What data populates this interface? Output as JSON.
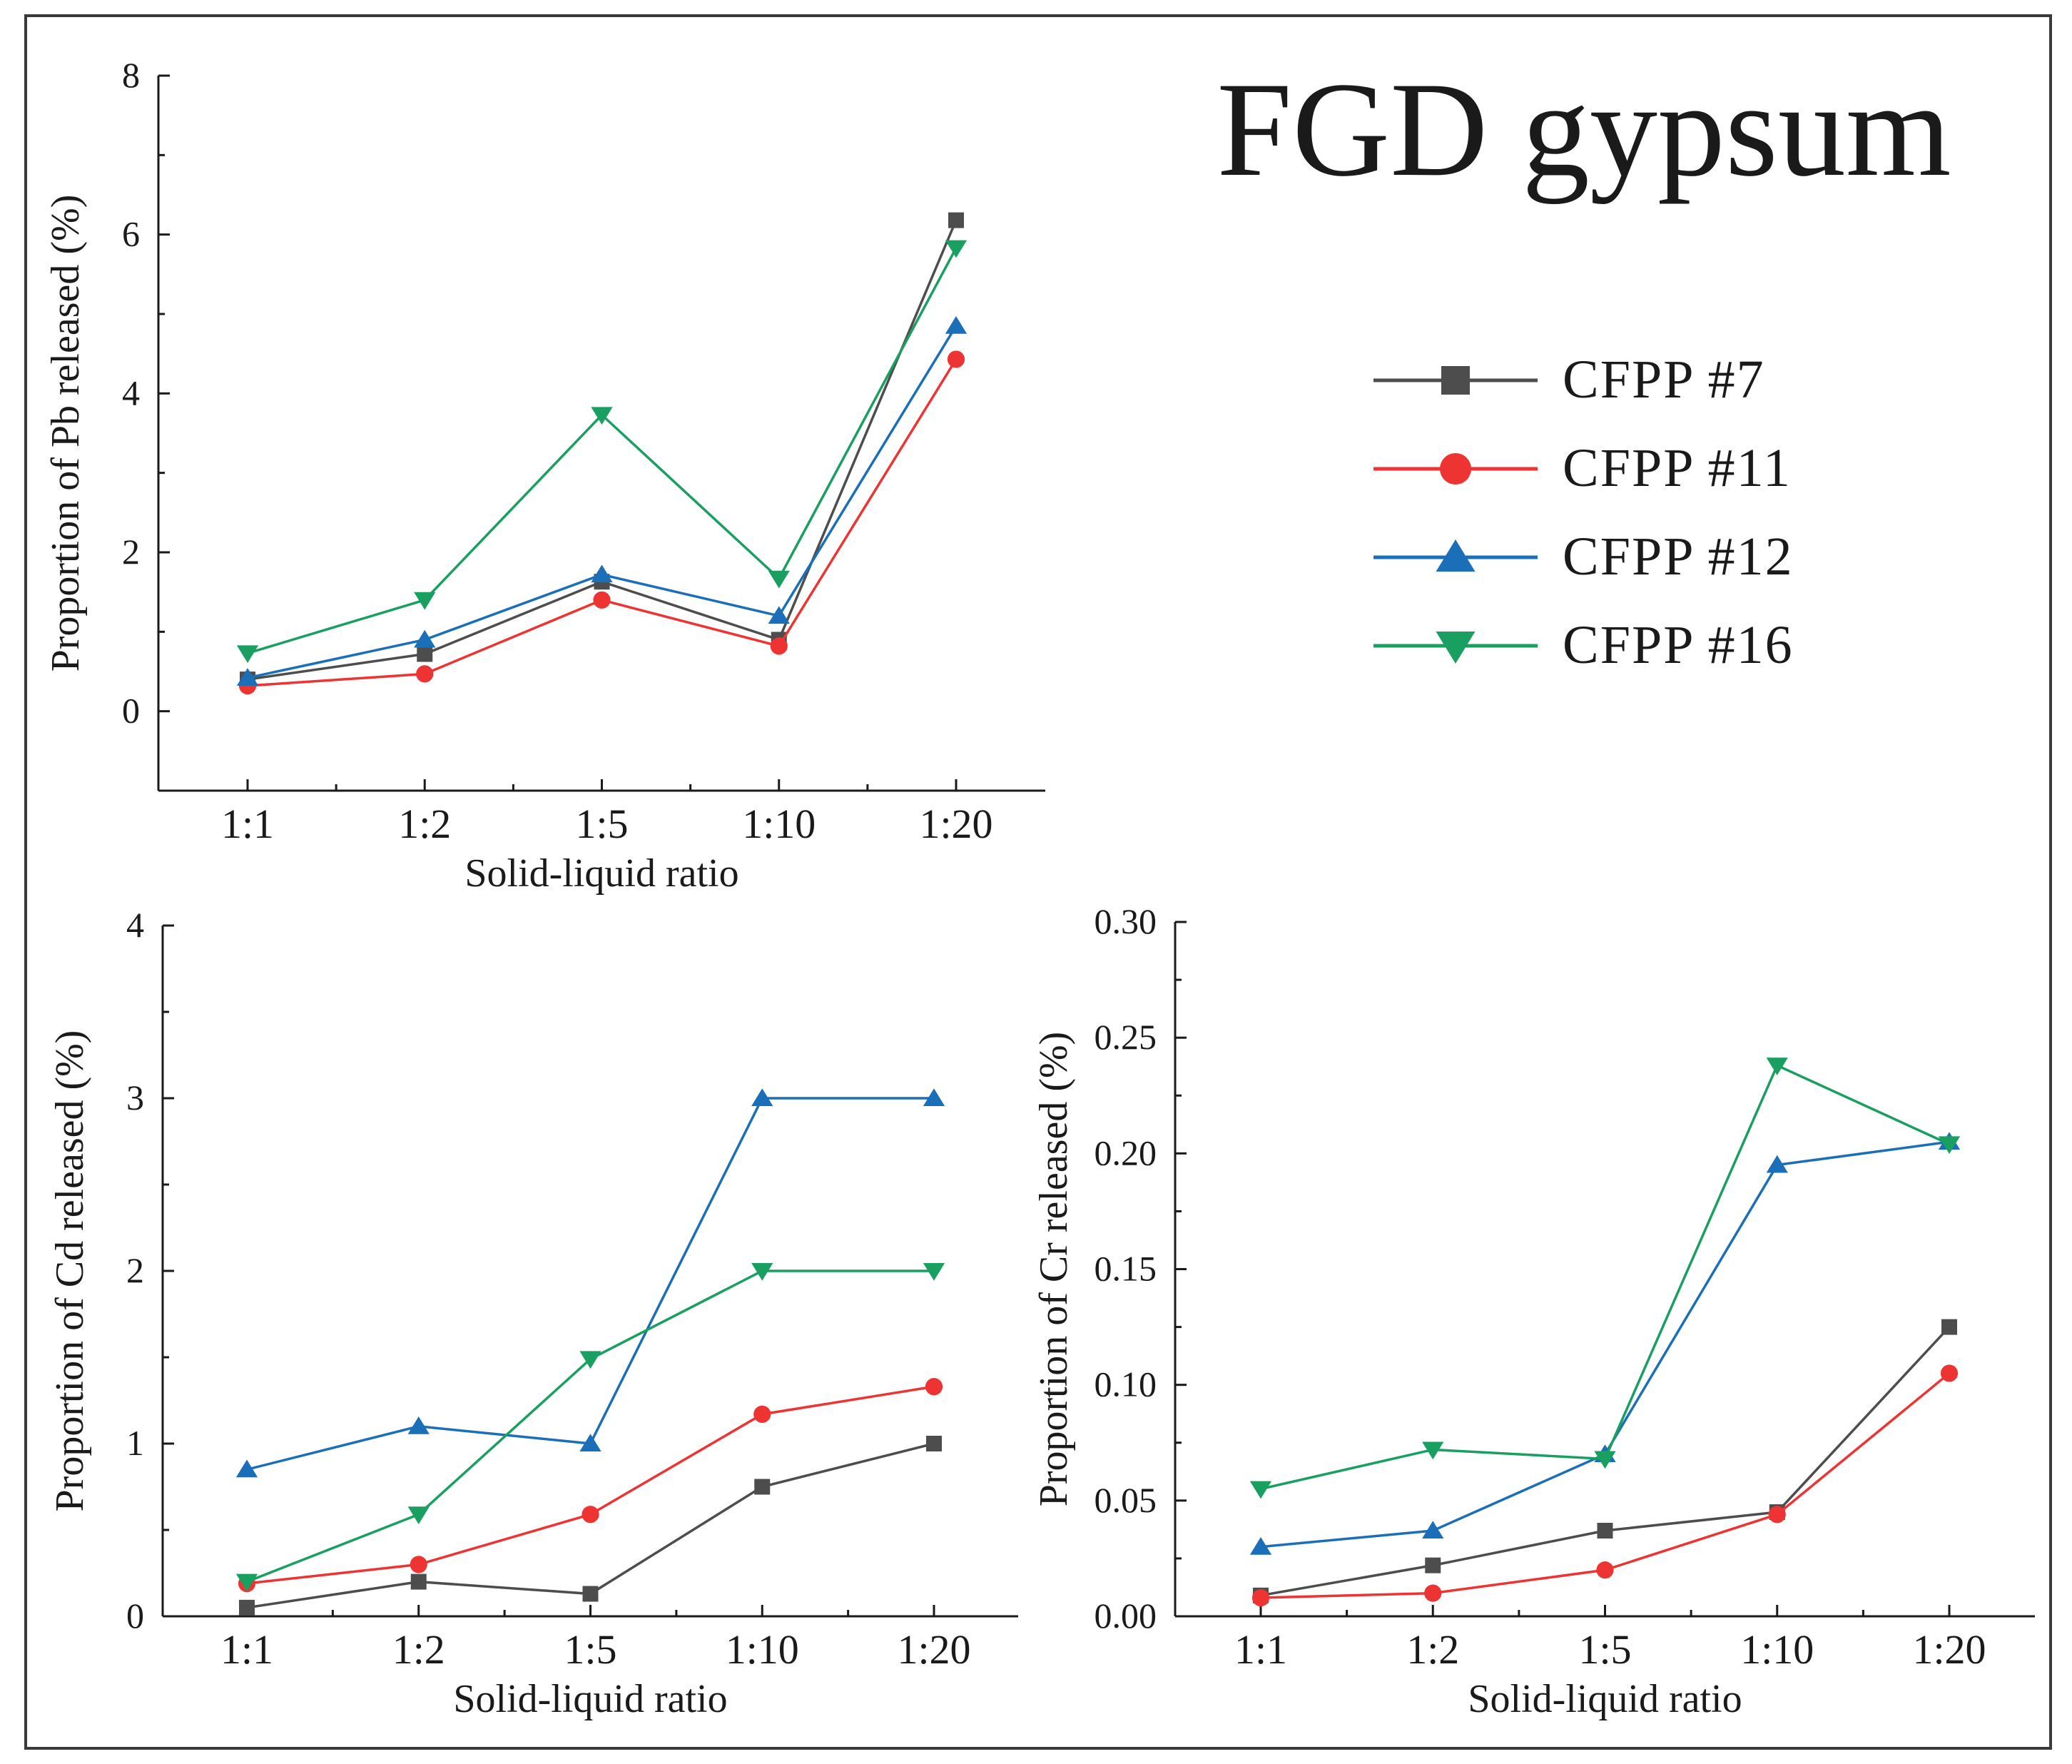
{
  "figure_title": "FGD gypsum",
  "colors": {
    "CFPP #7": "#4d4d4d",
    "CFPP #11": "#ee3333",
    "CFPP #12": "#1a6fb8",
    "CFPP #16": "#19a060"
  },
  "legend": [
    {
      "name": "CFPP #7",
      "marker": "square"
    },
    {
      "name": "CFPP #11",
      "marker": "circle"
    },
    {
      "name": "CFPP #12",
      "marker": "triangle-up"
    },
    {
      "name": "CFPP #16",
      "marker": "triangle-down"
    }
  ],
  "chart_data": [
    {
      "type": "line",
      "id": "pb",
      "title": "",
      "xlabel": "Solid-liquid ratio",
      "ylabel": "Proportion of Pb released (%)",
      "categories": [
        "1:1",
        "1:2",
        "1:5",
        "1:10",
        "1:20"
      ],
      "ylim": [
        -1,
        8
      ],
      "yticks": [
        0,
        2,
        4,
        6,
        8
      ],
      "ytick_labels": [
        "0",
        "2",
        "4",
        "6",
        "8"
      ],
      "series": [
        {
          "name": "CFPP #7",
          "marker": "square",
          "values": [
            0.4,
            0.72,
            1.63,
            0.9,
            6.18
          ]
        },
        {
          "name": "CFPP #11",
          "marker": "circle",
          "values": [
            0.32,
            0.47,
            1.4,
            0.82,
            4.43
          ]
        },
        {
          "name": "CFPP #12",
          "marker": "triangle-up",
          "values": [
            0.42,
            0.9,
            1.72,
            1.2,
            4.85
          ]
        },
        {
          "name": "CFPP #16",
          "marker": "triangle-down",
          "values": [
            0.73,
            1.4,
            3.73,
            1.67,
            5.83
          ]
        }
      ]
    },
    {
      "type": "line",
      "id": "cd",
      "title": "",
      "xlabel": "Solid-liquid ratio",
      "ylabel": "Proportion of Cd released (%)",
      "categories": [
        "1:1",
        "1:2",
        "1:5",
        "1:10",
        "1:20"
      ],
      "ylim": [
        0,
        4
      ],
      "yticks": [
        0,
        1,
        2,
        3,
        4
      ],
      "ytick_labels": [
        "0",
        "1",
        "2",
        "3",
        "4"
      ],
      "series": [
        {
          "name": "CFPP #7",
          "marker": "square",
          "values": [
            0.05,
            0.2,
            0.13,
            0.75,
            1.0
          ]
        },
        {
          "name": "CFPP #11",
          "marker": "circle",
          "values": [
            0.19,
            0.3,
            0.59,
            1.17,
            1.33
          ]
        },
        {
          "name": "CFPP #12",
          "marker": "triangle-up",
          "values": [
            0.85,
            1.1,
            1.0,
            3.0,
            3.0
          ]
        },
        {
          "name": "CFPP #16",
          "marker": "triangle-down",
          "values": [
            0.2,
            0.59,
            1.49,
            2.0,
            2.0
          ]
        }
      ]
    },
    {
      "type": "line",
      "id": "cr",
      "title": "",
      "xlabel": "Solid-liquid ratio",
      "ylabel": "Proportion of Cr released (%)",
      "categories": [
        "1:1",
        "1:2",
        "1:5",
        "1:10",
        "1:20"
      ],
      "ylim": [
        0,
        0.3
      ],
      "yticks": [
        0,
        0.05,
        0.1,
        0.15,
        0.2,
        0.25,
        0.3
      ],
      "ytick_labels": [
        "0.00",
        "0.05",
        "0.10",
        "0.15",
        "0.20",
        "0.25",
        "0.30"
      ],
      "series": [
        {
          "name": "CFPP #7",
          "marker": "square",
          "values": [
            0.009,
            0.022,
            0.037,
            0.045,
            0.125
          ]
        },
        {
          "name": "CFPP #11",
          "marker": "circle",
          "values": [
            0.008,
            0.01,
            0.02,
            0.044,
            0.105
          ]
        },
        {
          "name": "CFPP #12",
          "marker": "triangle-up",
          "values": [
            0.03,
            0.037,
            0.07,
            0.195,
            0.205
          ]
        },
        {
          "name": "CFPP #16",
          "marker": "triangle-down",
          "values": [
            0.055,
            0.072,
            0.068,
            0.238,
            0.204
          ]
        }
      ]
    }
  ]
}
